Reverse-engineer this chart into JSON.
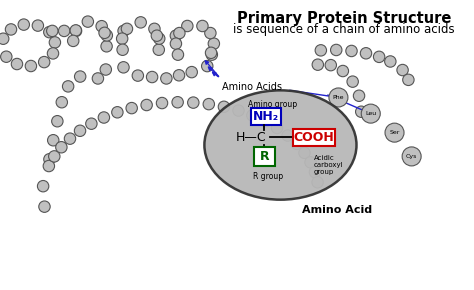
{
  "title": "Primary Protein Structure",
  "subtitle": "is sequence of a chain of amino acids",
  "background_color": "#ffffff",
  "chain_color": "#c0c0c0",
  "chain_edge_color": "#555555",
  "title_fontsize": 10.5,
  "subtitle_fontsize": 8.5,
  "amino_acids_label": "Amino Acids",
  "amino_acid_label": "Amino Acid",
  "labeled_beads": [
    "Phe",
    "Leu",
    "Ser",
    "Cys"
  ],
  "nh2_color": "#0000bb",
  "cooh_color": "#cc0000",
  "r_color": "#006600",
  "ellipse_fill": "#b8b8b8",
  "ellipse_edge": "#333333",
  "arrow_color": "#2222cc",
  "bead_r": 6.0,
  "labeled_bead_r": 10.0
}
